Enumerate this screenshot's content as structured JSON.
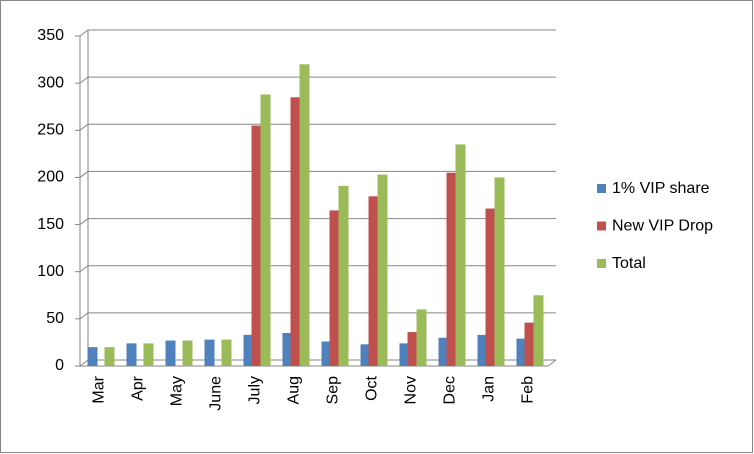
{
  "chart_data": {
    "type": "bar",
    "categories": [
      "Mar",
      "Apr",
      "May",
      "June",
      "July",
      "Aug",
      "Sep",
      "Oct",
      "Nov",
      "Dec",
      "Jan",
      "Feb"
    ],
    "series": [
      {
        "name": "1% VIP share",
        "color": "#4f81bd",
        "values": [
          20,
          24,
          27,
          28,
          33,
          35,
          26,
          23,
          24,
          30,
          33,
          29
        ]
      },
      {
        "name": "New VIP Drop",
        "color": "#c0504d",
        "values": [
          0,
          0,
          0,
          0,
          255,
          285,
          165,
          180,
          36,
          205,
          167,
          46
        ]
      },
      {
        "name": "Total",
        "color": "#9bbb59",
        "values": [
          20,
          24,
          27,
          28,
          288,
          320,
          191,
          203,
          60,
          235,
          200,
          75
        ]
      }
    ],
    "ylim": [
      0,
      350
    ],
    "yticks": [
      0,
      50,
      100,
      150,
      200,
      250,
      300,
      350
    ],
    "grid": true,
    "legend": "right"
  }
}
